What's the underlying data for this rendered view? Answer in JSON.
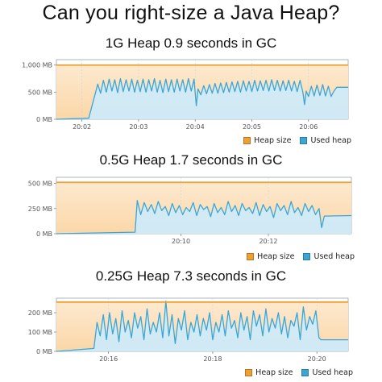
{
  "title": "Can you right-size a Java Heap?",
  "colors": {
    "heap_size": "#f0a030",
    "used_heap": "#3ba6d6",
    "used_fill": "#cfeaf8",
    "heap_fill": "#fde9cf"
  },
  "chart_data": [
    {
      "type": "area",
      "title": "1G Heap 0.9 seconds in GC",
      "xlabel": "",
      "ylabel": "",
      "y_ticks": [
        "0 MB",
        "500 MB",
        "1,000 MB"
      ],
      "y_tick_values": [
        0,
        500,
        1000
      ],
      "ylim": [
        0,
        1100
      ],
      "x_ticks": [
        "20:02",
        "20:03",
        "20:04",
        "20:05",
        "20:06"
      ],
      "x_tick_values": [
        2.0,
        3.0,
        4.0,
        5.0,
        6.0
      ],
      "xlim": [
        1.55,
        6.7
      ],
      "legend": {
        "position": "bottom-right",
        "entries": [
          "Heap size",
          "Used heap"
        ]
      },
      "series": [
        {
          "name": "Heap size",
          "x": [
            1.55,
            6.7
          ],
          "values": [
            1000,
            1000
          ]
        },
        {
          "name": "Used heap",
          "x": [
            1.55,
            2.12,
            2.28,
            2.33,
            2.38,
            2.43,
            2.48,
            2.53,
            2.58,
            2.63,
            2.68,
            2.73,
            2.78,
            2.83,
            2.88,
            2.93,
            2.98,
            3.03,
            3.08,
            3.13,
            3.18,
            3.23,
            3.28,
            3.33,
            3.38,
            3.43,
            3.48,
            3.53,
            3.58,
            3.63,
            3.68,
            3.73,
            3.78,
            3.83,
            3.88,
            3.93,
            3.98,
            4.02,
            4.05,
            4.1,
            4.15,
            4.2,
            4.25,
            4.3,
            4.35,
            4.4,
            4.45,
            4.5,
            4.55,
            4.6,
            4.65,
            4.7,
            4.75,
            4.8,
            4.85,
            4.9,
            4.95,
            5.0,
            5.05,
            5.1,
            5.15,
            5.2,
            5.25,
            5.3,
            5.35,
            5.4,
            5.45,
            5.5,
            5.55,
            5.6,
            5.65,
            5.7,
            5.75,
            5.8,
            5.85,
            5.9,
            5.93,
            5.96,
            6.0,
            6.05,
            6.1,
            6.15,
            6.2,
            6.25,
            6.3,
            6.35,
            6.4,
            6.45,
            6.5,
            6.7
          ],
          "values": [
            0,
            20,
            650,
            480,
            720,
            500,
            740,
            520,
            730,
            490,
            750,
            510,
            730,
            520,
            740,
            500,
            720,
            510,
            740,
            500,
            730,
            520,
            750,
            500,
            720,
            490,
            740,
            510,
            730,
            500,
            740,
            520,
            730,
            500,
            750,
            520,
            740,
            250,
            560,
            450,
            620,
            470,
            640,
            480,
            660,
            480,
            670,
            490,
            680,
            500,
            690,
            510,
            700,
            500,
            710,
            520,
            700,
            510,
            720,
            520,
            710,
            530,
            720,
            520,
            730,
            530,
            720,
            520,
            710,
            530,
            720,
            520,
            700,
            510,
            720,
            500,
            270,
            520,
            420,
            610,
            430,
            630,
            440,
            640,
            430,
            610,
            420,
            520,
            590,
            590
          ]
        }
      ]
    },
    {
      "type": "area",
      "title": "0.5G Heap 1.7 seconds in GC",
      "xlabel": "",
      "ylabel": "",
      "y_ticks": [
        "0 MB",
        "250 MB",
        "500 MB"
      ],
      "y_tick_values": [
        0,
        250,
        500
      ],
      "ylim": [
        0,
        560
      ],
      "x_ticks": [
        "20:10",
        "20:12"
      ],
      "x_tick_values": [
        10.0,
        12.0
      ],
      "xlim": [
        7.15,
        13.9
      ],
      "legend": {
        "position": "bottom-right",
        "entries": [
          "Heap size",
          "Used heap"
        ]
      },
      "series": [
        {
          "name": "Heap size",
          "x": [
            7.15,
            13.9
          ],
          "values": [
            510,
            510
          ]
        },
        {
          "name": "Used heap",
          "x": [
            7.15,
            8.95,
            9.0,
            9.08,
            9.16,
            9.24,
            9.32,
            9.4,
            9.48,
            9.56,
            9.64,
            9.72,
            9.8,
            9.88,
            9.96,
            10.04,
            10.12,
            10.2,
            10.28,
            10.36,
            10.44,
            10.52,
            10.6,
            10.68,
            10.76,
            10.84,
            10.92,
            11.0,
            11.08,
            11.16,
            11.24,
            11.32,
            11.4,
            11.48,
            11.56,
            11.64,
            11.72,
            11.8,
            11.88,
            11.96,
            12.04,
            12.12,
            12.2,
            12.28,
            12.36,
            12.44,
            12.52,
            12.6,
            12.68,
            12.76,
            12.84,
            12.92,
            13.0,
            13.08,
            13.16,
            13.22,
            13.28,
            13.9
          ],
          "values": [
            0,
            15,
            330,
            190,
            310,
            220,
            290,
            200,
            320,
            230,
            270,
            180,
            300,
            210,
            280,
            190,
            260,
            220,
            310,
            180,
            290,
            240,
            270,
            170,
            300,
            210,
            260,
            190,
            320,
            220,
            280,
            180,
            300,
            230,
            260,
            200,
            310,
            180,
            290,
            220,
            270,
            160,
            300,
            230,
            280,
            190,
            320,
            210,
            260,
            180,
            300,
            220,
            280,
            190,
            250,
            60,
            175,
            180
          ]
        }
      ]
    },
    {
      "type": "area",
      "title": "0.25G Heap 7.3 seconds in GC",
      "xlabel": "",
      "ylabel": "",
      "y_ticks": [
        "0 MB",
        "100 MB",
        "200 MB"
      ],
      "y_tick_values": [
        0,
        100,
        200
      ],
      "ylim": [
        0,
        275
      ],
      "x_ticks": [
        "20:16",
        "20:18",
        "20:20"
      ],
      "x_tick_values": [
        16.0,
        18.0,
        20.0
      ],
      "xlim": [
        15.0,
        20.6
      ],
      "legend": {
        "position": "bottom-right",
        "entries": [
          "Heap size",
          "Used heap"
        ]
      },
      "series": [
        {
          "name": "Heap size",
          "x": [
            15.0,
            20.6
          ],
          "values": [
            255,
            255
          ]
        },
        {
          "name": "Used heap",
          "x": [
            15.0,
            15.72,
            15.78,
            15.84,
            15.9,
            15.96,
            16.02,
            16.08,
            16.14,
            16.2,
            16.26,
            16.32,
            16.38,
            16.44,
            16.5,
            16.56,
            16.62,
            16.68,
            16.74,
            16.8,
            16.86,
            16.92,
            16.98,
            17.04,
            17.1,
            17.16,
            17.22,
            17.28,
            17.34,
            17.4,
            17.46,
            17.52,
            17.58,
            17.64,
            17.7,
            17.76,
            17.82,
            17.88,
            17.94,
            18.0,
            18.06,
            18.12,
            18.18,
            18.24,
            18.3,
            18.36,
            18.42,
            18.48,
            18.54,
            18.6,
            18.66,
            18.72,
            18.78,
            18.84,
            18.9,
            18.96,
            19.02,
            19.08,
            19.14,
            19.2,
            19.26,
            19.32,
            19.38,
            19.44,
            19.5,
            19.56,
            19.62,
            19.68,
            19.74,
            19.8,
            19.86,
            19.92,
            19.98,
            20.04,
            20.08,
            20.6
          ],
          "values": [
            0,
            15,
            150,
            80,
            190,
            60,
            200,
            90,
            170,
            50,
            210,
            100,
            160,
            70,
            200,
            120,
            180,
            60,
            220,
            90,
            150,
            100,
            200,
            70,
            260,
            80,
            190,
            40,
            170,
            110,
            210,
            60,
            150,
            100,
            190,
            80,
            170,
            110,
            200,
            60,
            150,
            100,
            190,
            80,
            210,
            120,
            160,
            70,
            200,
            110,
            180,
            60,
            210,
            130,
            190,
            80,
            220,
            100,
            170,
            120,
            200,
            90,
            180,
            70,
            160,
            130,
            200,
            60,
            230,
            110,
            180,
            140,
            210,
            70,
            60,
            60
          ]
        }
      ]
    }
  ]
}
